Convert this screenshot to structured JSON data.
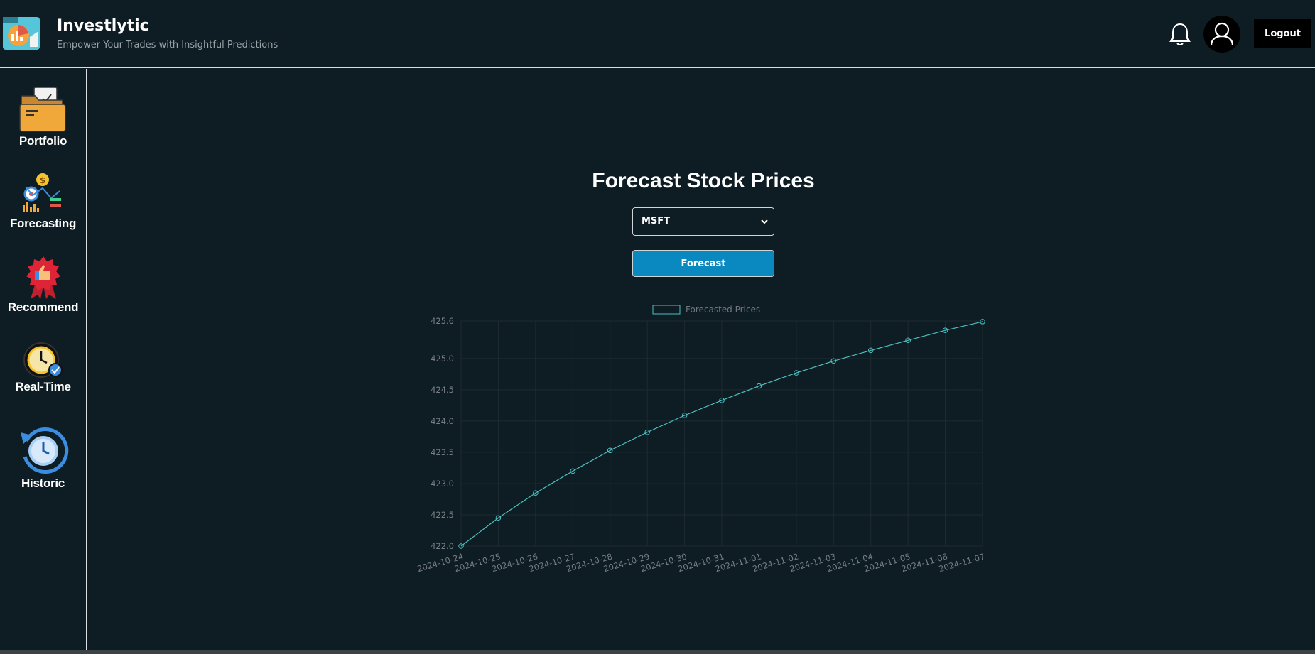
{
  "header": {
    "title": "Investlytic",
    "subtitle": "Empower Your Trades with Insightful Predictions",
    "logout_label": "Logout",
    "icons": [
      "app-logo-icon",
      "bell-icon",
      "user-avatar-icon"
    ]
  },
  "sidebar": {
    "items": [
      {
        "label": "Portfolio",
        "icon": "folder-icon"
      },
      {
        "label": "Forecasting",
        "icon": "forecasting-icon"
      },
      {
        "label": "Recommend",
        "icon": "thumbs-up-badge-icon"
      },
      {
        "label": "Real-Time",
        "icon": "clock-check-icon"
      },
      {
        "label": "Historic",
        "icon": "history-clock-icon"
      }
    ]
  },
  "main": {
    "title": "Forecast Stock Prices",
    "select_value": "MSFT",
    "forecast_button_label": "Forecast"
  },
  "colors": {
    "background": "#0e1c23",
    "line": "#4bc0c0",
    "button": "#0a88c0"
  },
  "chart_data": {
    "type": "line",
    "legend": "Forecasted Prices",
    "legend_position": "top",
    "grid": true,
    "x": [
      "2024-10-24",
      "2024-10-25",
      "2024-10-26",
      "2024-10-27",
      "2024-10-28",
      "2024-10-29",
      "2024-10-30",
      "2024-10-31",
      "2024-11-01",
      "2024-11-02",
      "2024-11-03",
      "2024-11-04",
      "2024-11-05",
      "2024-11-06",
      "2024-11-07"
    ],
    "series": [
      {
        "name": "Forecasted Prices",
        "values": [
          422.0,
          422.45,
          422.85,
          423.2,
          423.53,
          423.82,
          424.09,
          424.33,
          424.56,
          424.77,
          424.96,
          425.13,
          425.29,
          425.45,
          425.59
        ]
      }
    ],
    "yticks": [
      "422.0",
      "422.5",
      "423.0",
      "423.5",
      "424.0",
      "424.5",
      "425.0",
      "425.6"
    ],
    "ylim": [
      422.0,
      425.6
    ]
  }
}
